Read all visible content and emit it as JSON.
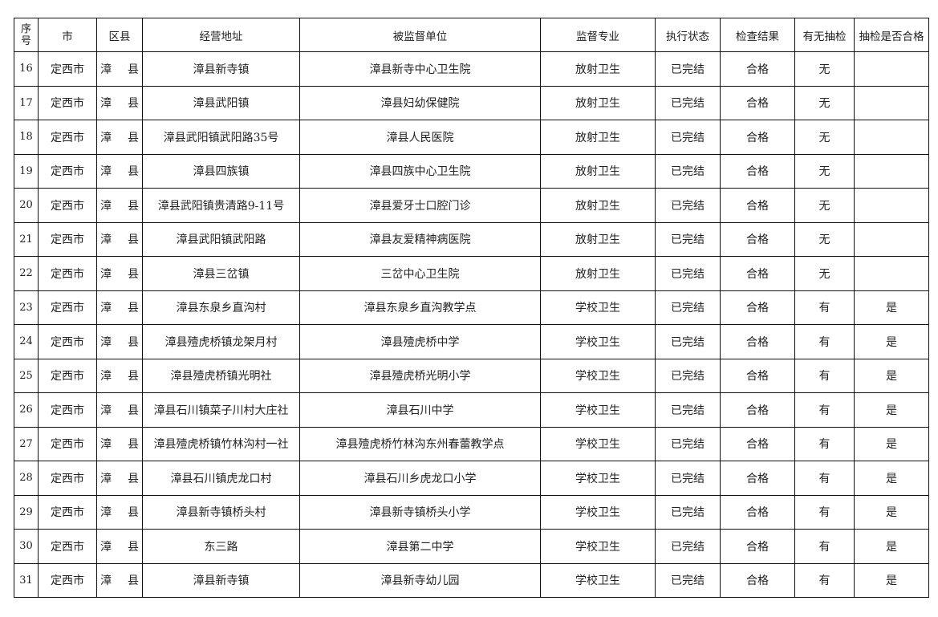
{
  "headers": [
    "序号",
    "市",
    "区县",
    "经营地址",
    "被监督单位",
    "监督专业",
    "执行状态",
    "检查结果",
    "有无抽检",
    "抽检是否合格"
  ],
  "rows": [
    [
      "16",
      "定西市",
      "漳　县",
      "漳县新寺镇",
      "漳县新寺中心卫生院",
      "放射卫生",
      "已完结",
      "合格",
      "无",
      ""
    ],
    [
      "17",
      "定西市",
      "漳　县",
      "漳县武阳镇",
      "漳县妇幼保健院",
      "放射卫生",
      "已完结",
      "合格",
      "无",
      ""
    ],
    [
      "18",
      "定西市",
      "漳　县",
      "漳县武阳镇武阳路35号",
      "漳县人民医院",
      "放射卫生",
      "已完结",
      "合格",
      "无",
      ""
    ],
    [
      "19",
      "定西市",
      "漳　县",
      "漳县四族镇",
      "漳县四族中心卫生院",
      "放射卫生",
      "已完结",
      "合格",
      "无",
      ""
    ],
    [
      "20",
      "定西市",
      "漳　县",
      "漳县武阳镇贵清路9-11号",
      "漳县爱牙士口腔门诊",
      "放射卫生",
      "已完结",
      "合格",
      "无",
      ""
    ],
    [
      "21",
      "定西市",
      "漳　县",
      "漳县武阳镇武阳路",
      "漳县友爱精神病医院",
      "放射卫生",
      "已完结",
      "合格",
      "无",
      ""
    ],
    [
      "22",
      "定西市",
      "漳　县",
      "漳县三岔镇",
      "三岔中心卫生院",
      "放射卫生",
      "已完结",
      "合格",
      "无",
      ""
    ],
    [
      "23",
      "定西市",
      "漳　县",
      "漳县东泉乡直沟村",
      "漳县东泉乡直沟教学点",
      "学校卫生",
      "已完结",
      "合格",
      "有",
      "是"
    ],
    [
      "24",
      "定西市",
      "漳　县",
      "漳县殪虎桥镇龙架月村",
      "漳县殪虎桥中学",
      "学校卫生",
      "已完结",
      "合格",
      "有",
      "是"
    ],
    [
      "25",
      "定西市",
      "漳　县",
      "漳县殪虎桥镇光明社",
      "漳县殪虎桥光明小学",
      "学校卫生",
      "已完结",
      "合格",
      "有",
      "是"
    ],
    [
      "26",
      "定西市",
      "漳　县",
      "漳县石川镇菜子川村大庄社",
      "漳县石川中学",
      "学校卫生",
      "已完结",
      "合格",
      "有",
      "是"
    ],
    [
      "27",
      "定西市",
      "漳　县",
      "漳县殪虎桥镇竹林沟村一社",
      "漳县殪虎桥竹林沟东州春蕾教学点",
      "学校卫生",
      "已完结",
      "合格",
      "有",
      "是"
    ],
    [
      "28",
      "定西市",
      "漳　县",
      "漳县石川镇虎龙口村",
      "漳县石川乡虎龙口小学",
      "学校卫生",
      "已完结",
      "合格",
      "有",
      "是"
    ],
    [
      "29",
      "定西市",
      "漳　县",
      "漳县新寺镇桥头村",
      "漳县新寺镇桥头小学",
      "学校卫生",
      "已完结",
      "合格",
      "有",
      "是"
    ],
    [
      "30",
      "定西市",
      "漳　县",
      "东三路",
      "漳县第二中学",
      "学校卫生",
      "已完结",
      "合格",
      "有",
      "是"
    ],
    [
      "31",
      "定西市",
      "漳　县",
      "漳县新寺镇",
      "漳县新寺幼儿园",
      "学校卫生",
      "已完结",
      "合格",
      "有",
      "是"
    ]
  ]
}
